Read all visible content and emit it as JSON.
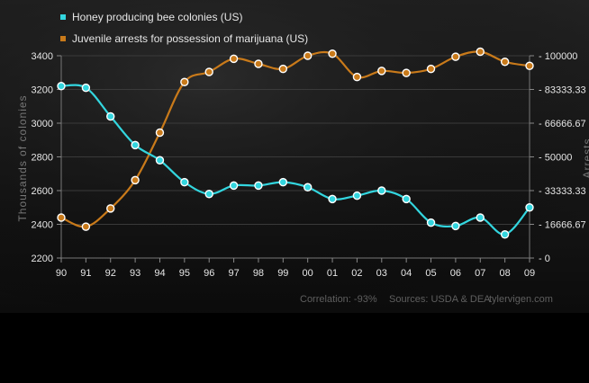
{
  "chart_data": {
    "type": "line",
    "x": [
      "90",
      "91",
      "92",
      "93",
      "94",
      "95",
      "96",
      "97",
      "98",
      "99",
      "00",
      "01",
      "02",
      "03",
      "04",
      "05",
      "06",
      "07",
      "08",
      "09"
    ],
    "series": [
      {
        "name": "Honey producing bee colonies (US)",
        "axis": "left",
        "color": "#33d6df",
        "values": [
          3220,
          3210,
          3040,
          2870,
          2780,
          2650,
          2580,
          2630,
          2630,
          2650,
          2620,
          2550,
          2570,
          2600,
          2550,
          2410,
          2390,
          2440,
          2340,
          2500
        ]
      },
      {
        "name": "Juvenile arrests for possession of marijuana (US)",
        "axis": "right",
        "color": "#c97a1a",
        "values": [
          20000,
          15500,
          24500,
          38500,
          62000,
          87000,
          92000,
          98500,
          96000,
          93500,
          100000,
          101000,
          89500,
          92500,
          91500,
          93500,
          99500,
          102000,
          97000,
          95000
        ]
      }
    ],
    "y_left": {
      "label": "Thousands of colonies",
      "ticks": [
        "2200",
        "2400",
        "2600",
        "2800",
        "3000",
        "3200",
        "3400"
      ],
      "ylim": [
        2200,
        3400
      ]
    },
    "y_right": {
      "label": "Arrests",
      "ticks": [
        "0",
        "16666.67",
        "33333.33",
        "50000",
        "66666.67",
        "83333.33",
        "100000"
      ],
      "ylim": [
        0,
        100000
      ]
    },
    "grid": "horizontal",
    "legend_position": "top-left",
    "footer": {
      "correlation": "Correlation: -93%",
      "sources": "Sources: USDA & DEA",
      "site": "tylervigen.com"
    }
  }
}
